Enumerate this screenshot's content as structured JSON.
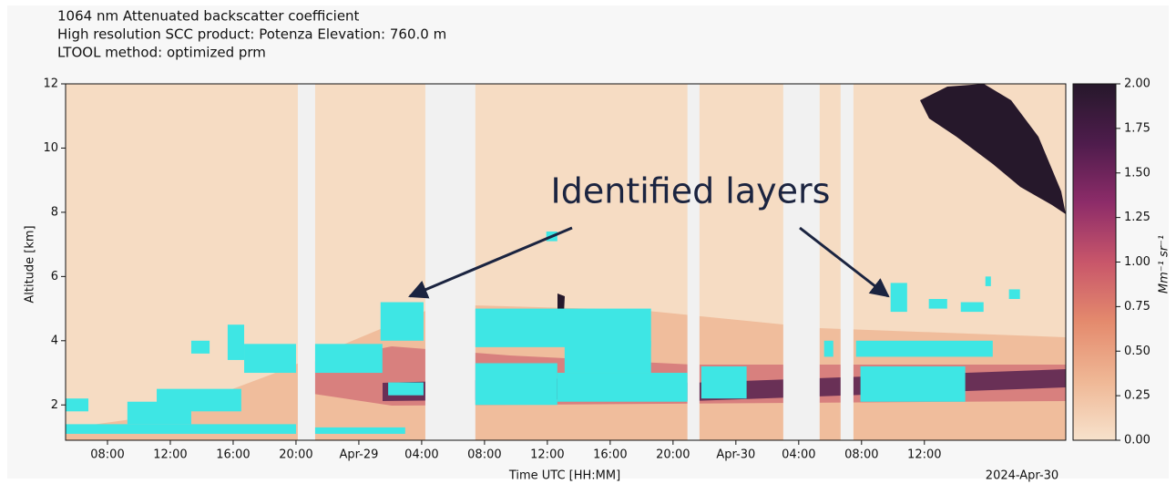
{
  "chart_data": {
    "type": "heatmap",
    "title_lines": [
      "1064 nm Attenuated backscatter coefficient",
      "High resolution SCC product: Potenza   Elevation: 760.0 m",
      "LTOOL   method: optimized prm"
    ],
    "xlabel": "Time UTC [HH:MM]",
    "ylabel": "Altitude [km]",
    "x_offset_label": "2024-Apr-30",
    "annotation": "Identified layers",
    "xlim": [
      "2024-04-28T05:20",
      "2024-04-30T21:00"
    ],
    "xticks": [
      {
        "value": "2024-04-28T08:00",
        "label": "08:00"
      },
      {
        "value": "2024-04-28T12:00",
        "label": "12:00"
      },
      {
        "value": "2024-04-28T16:00",
        "label": "16:00"
      },
      {
        "value": "2024-04-28T20:00",
        "label": "20:00"
      },
      {
        "value": "2024-04-29T00:00",
        "label": "Apr-29"
      },
      {
        "value": "2024-04-29T04:00",
        "label": "04:00"
      },
      {
        "value": "2024-04-29T08:00",
        "label": "08:00"
      },
      {
        "value": "2024-04-29T12:00",
        "label": "12:00"
      },
      {
        "value": "2024-04-29T16:00",
        "label": "16:00"
      },
      {
        "value": "2024-04-29T20:00",
        "label": "20:00"
      },
      {
        "value": "2024-04-30T00:00",
        "label": "Apr-30"
      },
      {
        "value": "2024-04-30T04:00",
        "label": "04:00"
      },
      {
        "value": "2024-04-30T08:00",
        "label": "08:00"
      },
      {
        "value": "2024-04-30T12:00",
        "label": "12:00"
      }
    ],
    "ylim": [
      0.9,
      12
    ],
    "yticks": [
      2,
      4,
      6,
      8,
      10,
      12
    ],
    "colorbar_label": "Mm⁻¹ sr⁻¹",
    "clim": [
      0,
      2
    ],
    "colorbar_ticks": [
      {
        "value": 0,
        "label": "0.00"
      },
      {
        "value": 0.25,
        "label": "0.25"
      },
      {
        "value": 0.5,
        "label": "0.50"
      },
      {
        "value": 0.75,
        "label": "0.75"
      },
      {
        "value": 1,
        "label": "1.00"
      },
      {
        "value": 1.25,
        "label": "1.25"
      },
      {
        "value": 1.5,
        "label": "1.50"
      },
      {
        "value": 1.75,
        "label": "1.75"
      },
      {
        "value": 2,
        "label": "2.00"
      }
    ],
    "colormap": [
      "#f7e2cc",
      "#efb795",
      "#e48a6d",
      "#c8566a",
      "#8d2c69",
      "#4e1c4c",
      "#26182b"
    ],
    "background_color": "#f6dcc3",
    "gap_color": "#f1f1f1",
    "gaps": [
      {
        "start": "2024-04-28T20:07",
        "end": "2024-04-28T21:13"
      },
      {
        "start": "2024-04-29T04:14",
        "end": "2024-04-29T07:25"
      },
      {
        "start": "2024-04-29T20:55",
        "end": "2024-04-29T21:41"
      },
      {
        "start": "2024-04-30T03:01",
        "end": "2024-04-30T05:20"
      },
      {
        "start": "2024-04-30T06:40",
        "end": "2024-04-30T07:29"
      }
    ],
    "layer_color": "#3ee6e4",
    "layers": [
      {
        "start": "2024-04-28T05:20",
        "end": "2024-04-28T06:47",
        "bottom": 1.8,
        "top": 2.2
      },
      {
        "start": "2024-04-28T05:20",
        "end": "2024-04-28T20:00",
        "bottom": 1.1,
        "top": 1.4
      },
      {
        "start": "2024-04-28T09:16",
        "end": "2024-04-28T13:20",
        "bottom": 1.4,
        "top": 2.1
      },
      {
        "start": "2024-04-28T11:08",
        "end": "2024-04-28T16:31",
        "bottom": 1.8,
        "top": 2.5
      },
      {
        "start": "2024-04-28T13:20",
        "end": "2024-04-28T14:30",
        "bottom": 3.6,
        "top": 4.0
      },
      {
        "start": "2024-04-28T15:39",
        "end": "2024-04-28T16:42",
        "bottom": 3.4,
        "top": 4.5
      },
      {
        "start": "2024-04-28T16:42",
        "end": "2024-04-28T20:00",
        "bottom": 3.0,
        "top": 3.9
      },
      {
        "start": "2024-04-28T21:13",
        "end": "2024-04-29T01:30",
        "bottom": 3.0,
        "top": 3.9
      },
      {
        "start": "2024-04-28T21:13",
        "end": "2024-04-29T02:57",
        "bottom": 1.1,
        "top": 1.3
      },
      {
        "start": "2024-04-29T01:23",
        "end": "2024-04-29T04:07",
        "bottom": 4.0,
        "top": 5.2
      },
      {
        "start": "2024-04-29T01:52",
        "end": "2024-04-29T04:07",
        "bottom": 2.3,
        "top": 2.7
      },
      {
        "start": "2024-04-29T07:25",
        "end": "2024-04-29T12:38",
        "bottom": 2.0,
        "top": 3.3
      },
      {
        "start": "2024-04-29T07:25",
        "end": "2024-04-29T18:36",
        "bottom": 3.8,
        "top": 5.0
      },
      {
        "start": "2024-04-29T11:56",
        "end": "2024-04-29T12:38",
        "bottom": 7.1,
        "top": 7.4
      },
      {
        "start": "2024-04-29T12:38",
        "end": "2024-04-29T20:55",
        "bottom": 2.1,
        "top": 3.0
      },
      {
        "start": "2024-04-29T13:06",
        "end": "2024-04-29T18:36",
        "bottom": 3.0,
        "top": 4.0
      },
      {
        "start": "2024-04-29T21:48",
        "end": "2024-04-30T00:41",
        "bottom": 2.2,
        "top": 3.2
      },
      {
        "start": "2024-04-30T05:37",
        "end": "2024-04-30T06:12",
        "bottom": 3.5,
        "top": 4.0
      },
      {
        "start": "2024-04-30T07:39",
        "end": "2024-04-30T16:21",
        "bottom": 3.5,
        "top": 4.0
      },
      {
        "start": "2024-04-30T07:56",
        "end": "2024-04-30T14:36",
        "bottom": 2.1,
        "top": 3.2
      },
      {
        "start": "2024-04-30T09:51",
        "end": "2024-04-30T10:54",
        "bottom": 4.9,
        "top": 5.8
      },
      {
        "start": "2024-04-30T12:17",
        "end": "2024-04-30T13:27",
        "bottom": 5.0,
        "top": 5.3
      },
      {
        "start": "2024-04-30T14:19",
        "end": "2024-04-30T15:46",
        "bottom": 4.9,
        "top": 5.2
      },
      {
        "start": "2024-04-30T15:53",
        "end": "2024-04-30T16:14",
        "bottom": 5.7,
        "top": 6.0
      },
      {
        "start": "2024-04-30T17:23",
        "end": "2024-04-30T18:05",
        "bottom": 5.3,
        "top": 5.6
      }
    ]
  }
}
